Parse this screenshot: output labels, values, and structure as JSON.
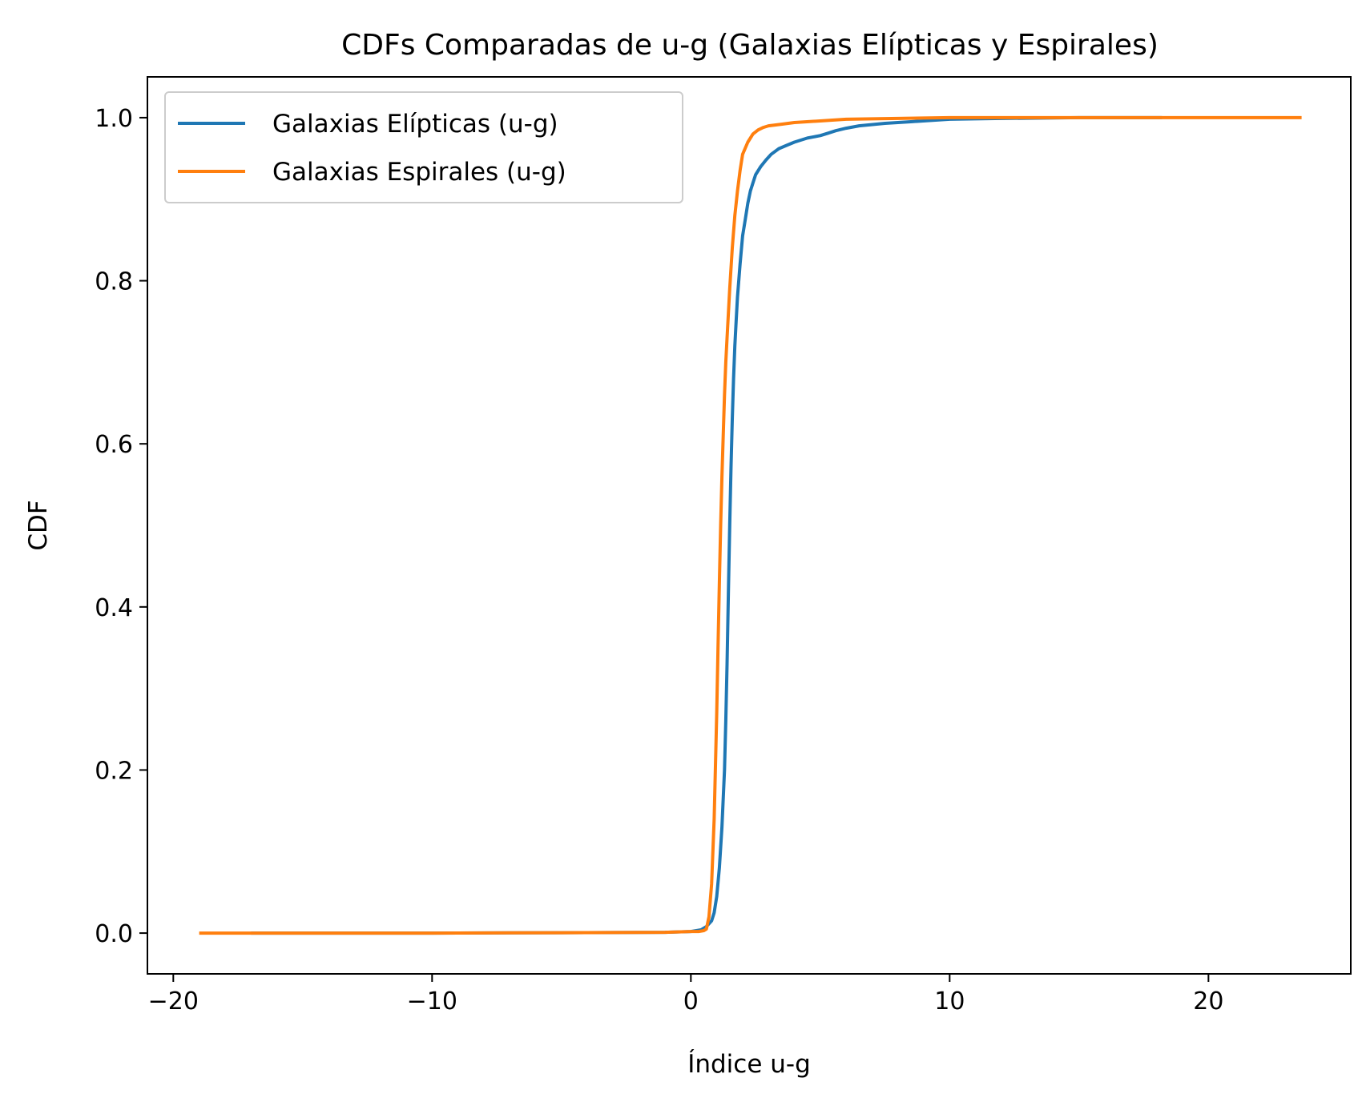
{
  "chart_data": {
    "type": "line",
    "title": "CDFs Comparadas de u-g (Galaxias Elípticas y Espirales)",
    "xlabel": "Índice u-g",
    "ylabel": "CDF",
    "xlim": [
      -21,
      25.5
    ],
    "ylim": [
      -0.05,
      1.05
    ],
    "xticks": [
      {
        "value": -20,
        "label": "−20"
      },
      {
        "value": -10,
        "label": "−10"
      },
      {
        "value": 0,
        "label": "0"
      },
      {
        "value": 10,
        "label": "10"
      },
      {
        "value": 20,
        "label": "20"
      }
    ],
    "yticks": [
      {
        "value": 0.0,
        "label": "0.0"
      },
      {
        "value": 0.2,
        "label": "0.2"
      },
      {
        "value": 0.4,
        "label": "0.4"
      },
      {
        "value": 0.6,
        "label": "0.6"
      },
      {
        "value": 0.8,
        "label": "0.8"
      },
      {
        "value": 1.0,
        "label": "1.0"
      }
    ],
    "grid": false,
    "legend_position": "top-left",
    "series": [
      {
        "name": "Galaxias Elípticas (u-g)",
        "color": "#1f77b4",
        "x": [
          -17.0,
          -10.0,
          -5.0,
          -1.0,
          0.0,
          0.4,
          0.6,
          0.8,
          0.9,
          1.0,
          1.1,
          1.2,
          1.3,
          1.35,
          1.4,
          1.45,
          1.5,
          1.55,
          1.6,
          1.65,
          1.7,
          1.75,
          1.8,
          1.9,
          2.0,
          2.1,
          2.2,
          2.3,
          2.4,
          2.5,
          2.7,
          2.9,
          3.1,
          3.4,
          3.7,
          4.0,
          4.5,
          5.0,
          5.3,
          5.6,
          6.0,
          6.5,
          7.5,
          8.5,
          10.0,
          12.0,
          15.0,
          18.2
        ],
        "y": [
          0.0,
          0.0,
          0.0005,
          0.001,
          0.002,
          0.004,
          0.008,
          0.015,
          0.025,
          0.045,
          0.08,
          0.13,
          0.2,
          0.26,
          0.33,
          0.42,
          0.5,
          0.57,
          0.63,
          0.68,
          0.72,
          0.75,
          0.78,
          0.82,
          0.855,
          0.875,
          0.895,
          0.91,
          0.92,
          0.93,
          0.94,
          0.948,
          0.955,
          0.962,
          0.966,
          0.97,
          0.975,
          0.978,
          0.981,
          0.984,
          0.987,
          0.99,
          0.993,
          0.995,
          0.998,
          0.999,
          1.0,
          1.0
        ]
      },
      {
        "name": "Galaxias Espirales (u-g)",
        "color": "#ff7f0e",
        "x": [
          -19.0,
          -10.0,
          -5.0,
          -1.0,
          0.0,
          0.3,
          0.5,
          0.6,
          0.7,
          0.8,
          0.9,
          1.0,
          1.05,
          1.1,
          1.15,
          1.2,
          1.25,
          1.3,
          1.35,
          1.4,
          1.5,
          1.6,
          1.7,
          1.8,
          1.9,
          2.0,
          2.2,
          2.4,
          2.6,
          2.8,
          3.0,
          3.5,
          4.0,
          5.0,
          6.0,
          8.0,
          10.0,
          15.0,
          20.0,
          23.6
        ],
        "y": [
          0.0,
          0.0,
          0.0005,
          0.001,
          0.002,
          0.002,
          0.003,
          0.005,
          0.02,
          0.06,
          0.14,
          0.27,
          0.35,
          0.43,
          0.5,
          0.56,
          0.61,
          0.66,
          0.7,
          0.73,
          0.79,
          0.84,
          0.88,
          0.91,
          0.935,
          0.955,
          0.97,
          0.98,
          0.985,
          0.988,
          0.99,
          0.992,
          0.994,
          0.996,
          0.998,
          0.999,
          1.0,
          1.0,
          1.0,
          1.0
        ]
      }
    ]
  }
}
